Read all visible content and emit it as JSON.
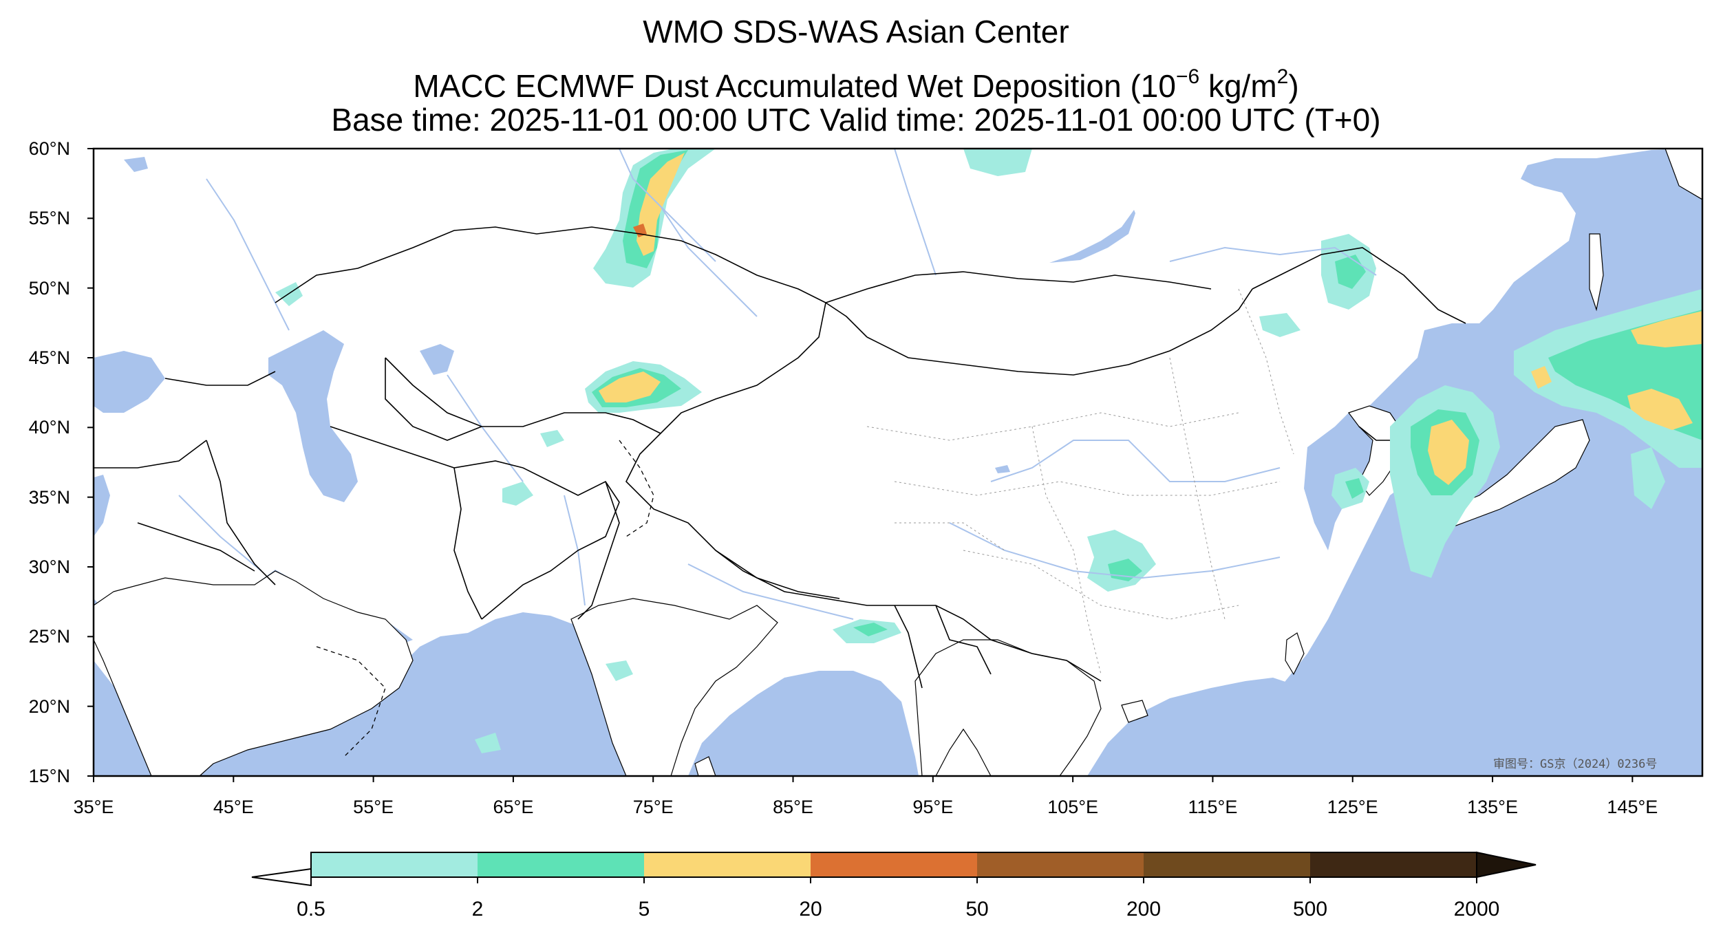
{
  "title": {
    "line1": "WMO SDS-WAS Asian Center",
    "line2_prefix": "MACC ECMWF Dust Accumulated Wet Deposition (10",
    "line2_exp": "−6",
    "line2_mid": " kg/m",
    "line2_exp2": "2",
    "line2_suffix": ")",
    "line3": "Base time: 2025-11-01 00:00 UTC Valid time: 2025-11-01 00:00 UTC (T+0)"
  },
  "map": {
    "extent": {
      "lon_min": 35,
      "lon_max": 150,
      "lat_min": 15,
      "lat_max": 60
    },
    "lat_ticks": [
      {
        "value": 60,
        "label": "60°N"
      },
      {
        "value": 55,
        "label": "55°N"
      },
      {
        "value": 50,
        "label": "50°N"
      },
      {
        "value": 45,
        "label": "45°N"
      },
      {
        "value": 40,
        "label": "40°N"
      },
      {
        "value": 35,
        "label": "35°N"
      },
      {
        "value": 30,
        "label": "30°N"
      },
      {
        "value": 25,
        "label": "25°N"
      },
      {
        "value": 20,
        "label": "20°N"
      },
      {
        "value": 15,
        "label": "15°N"
      }
    ],
    "lon_ticks": [
      {
        "value": 35,
        "label": "35°E"
      },
      {
        "value": 45,
        "label": "45°E"
      },
      {
        "value": 55,
        "label": "55°E"
      },
      {
        "value": 65,
        "label": "65°E"
      },
      {
        "value": 75,
        "label": "75°E"
      },
      {
        "value": 85,
        "label": "85°E"
      },
      {
        "value": 95,
        "label": "95°E"
      },
      {
        "value": 105,
        "label": "105°E"
      },
      {
        "value": 115,
        "label": "115°E"
      },
      {
        "value": 125,
        "label": "125°E"
      },
      {
        "value": 135,
        "label": "135°E"
      },
      {
        "value": 145,
        "label": "145°E"
      }
    ],
    "approval_number": "审图号：GS京（2024）0236号",
    "colors": {
      "ocean": "#a9c3ec",
      "land": "#ffffff",
      "border": "#000000",
      "river": "#a9c3ec"
    }
  },
  "colorbar": {
    "levels": [
      "0.5",
      "2",
      "5",
      "20",
      "50",
      "200",
      "500",
      "2000"
    ],
    "colors": [
      "#a2ebe0",
      "#5ee2b6",
      "#fad775",
      "#dc7132",
      "#a05e28",
      "#6f4a1e",
      "#3e2814"
    ],
    "under_color": "#ffffff",
    "over_color": "#1e140a"
  }
}
